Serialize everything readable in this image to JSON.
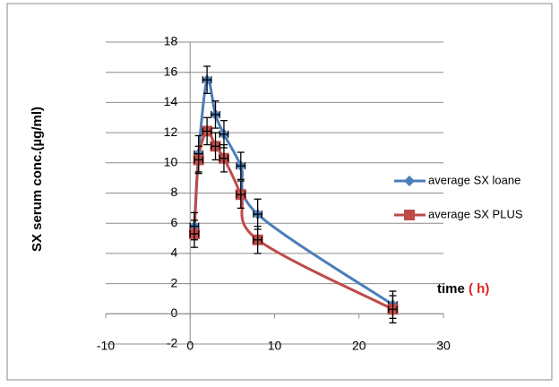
{
  "chart_data": {
    "type": "scatter",
    "y_label": "SX  serum conc.(µg/ml)",
    "x_label": "time",
    "x_label_unit": "( h)",
    "x": [
      0.5,
      1,
      2,
      3,
      4,
      6,
      8,
      24
    ],
    "series": [
      {
        "name": "average SX loane",
        "color": "#4a7ebb",
        "marker": "diamond",
        "values": [
          5.8,
          10.6,
          15.5,
          13.2,
          11.9,
          9.8,
          6.6,
          0.6
        ],
        "errors": [
          0.9,
          1.2,
          0.9,
          0.9,
          0.9,
          0.9,
          1.0,
          0.9
        ]
      },
      {
        "name": "average SX PLUS",
        "color": "#be4b48",
        "marker": "square",
        "values": [
          5.3,
          10.2,
          12.1,
          11.1,
          10.3,
          7.9,
          4.9,
          0.3
        ],
        "errors": [
          0.9,
          0.9,
          0.9,
          0.9,
          0.9,
          0.9,
          0.9,
          0.9
        ]
      }
    ],
    "xerrors": [
      0.5,
      0.5,
      0.5,
      0.5,
      0.5,
      0.5,
      0.5,
      0.5
    ],
    "xlim": [
      -10,
      30
    ],
    "xticks": [
      -10,
      0,
      10,
      20,
      30
    ],
    "ylim": [
      -2,
      18
    ],
    "yticks": [
      -2,
      0,
      2,
      4,
      6,
      8,
      10,
      12,
      14,
      16,
      18
    ],
    "grid": true,
    "legend": "right"
  }
}
